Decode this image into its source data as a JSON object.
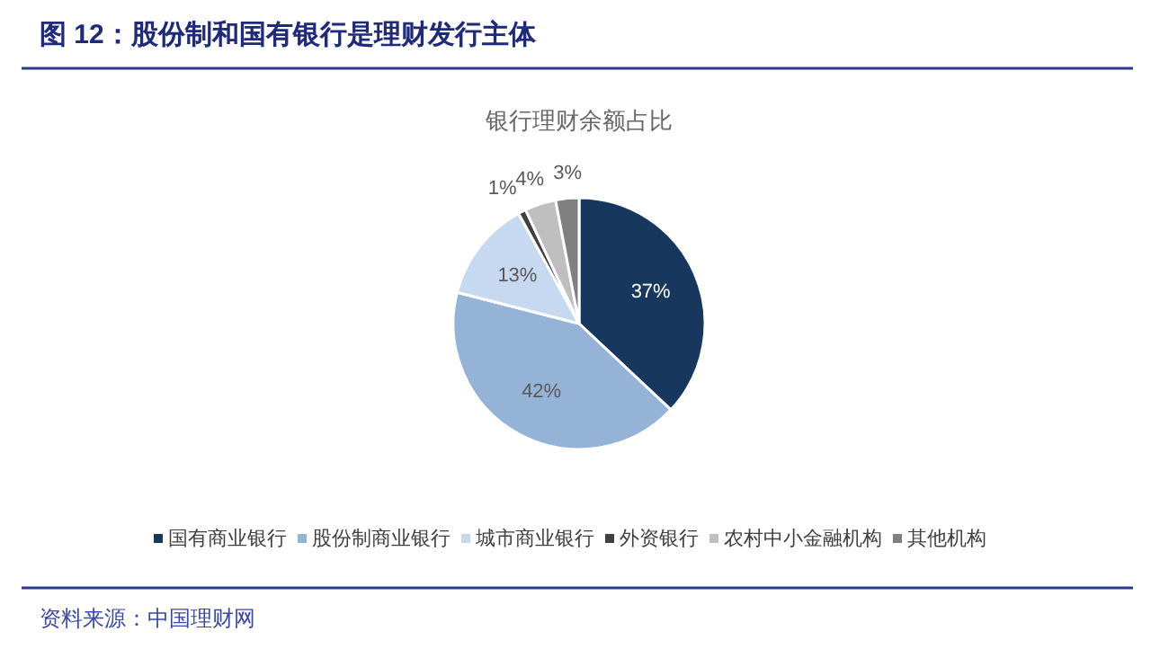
{
  "chart_data": {
    "type": "pie",
    "title": "图 12：股份制和国有银行是理财发行主体",
    "subtitle": "银行理财余额占比",
    "categories": [
      "国有商业银行",
      "股份制商业银行",
      "城市商业银行",
      "外资银行",
      "农村中小金融机构",
      "其他机构"
    ],
    "values": [
      37,
      42,
      13,
      1,
      4,
      3
    ],
    "colors": [
      "#17375e",
      "#95b3d7",
      "#c6d9f1",
      "#404040",
      "#bfbfbf",
      "#808080"
    ],
    "value_labels": [
      "37%",
      "42%",
      "13%",
      "1%",
      "4%",
      "3%"
    ],
    "legend": "bottom",
    "annotations": [
      "资料来源：中国理财网"
    ]
  }
}
